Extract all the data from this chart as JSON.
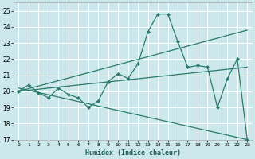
{
  "xlabel": "Humidex (Indice chaleur)",
  "bg_color": "#cce8ec",
  "grid_color": "#ffffff",
  "line_color": "#2a7a6a",
  "xlim": [
    -0.5,
    23.5
  ],
  "ylim": [
    17,
    25.5
  ],
  "xticks": [
    0,
    1,
    2,
    3,
    4,
    5,
    6,
    7,
    8,
    9,
    10,
    11,
    12,
    13,
    14,
    15,
    16,
    17,
    18,
    19,
    20,
    21,
    22,
    23
  ],
  "yticks": [
    17,
    18,
    19,
    20,
    21,
    22,
    23,
    24,
    25
  ],
  "line1_x": [
    0,
    1,
    2,
    3,
    4,
    5,
    6,
    7,
    8,
    9,
    10,
    11,
    12,
    13,
    14,
    15,
    16,
    17,
    18,
    19,
    20,
    21,
    22,
    23
  ],
  "line1_y": [
    20.0,
    20.4,
    19.9,
    19.6,
    20.2,
    19.8,
    19.6,
    19.0,
    19.4,
    20.6,
    21.1,
    20.8,
    21.7,
    23.7,
    24.8,
    24.8,
    23.1,
    21.5,
    21.6,
    21.5,
    19.0,
    20.8,
    22.0,
    17.0
  ],
  "line2_x": [
    0,
    23
  ],
  "line2_y": [
    20.0,
    21.5
  ],
  "line3_x": [
    0,
    23
  ],
  "line3_y": [
    20.0,
    23.8
  ],
  "line4_x": [
    0,
    23
  ],
  "line4_y": [
    20.2,
    17.0
  ]
}
